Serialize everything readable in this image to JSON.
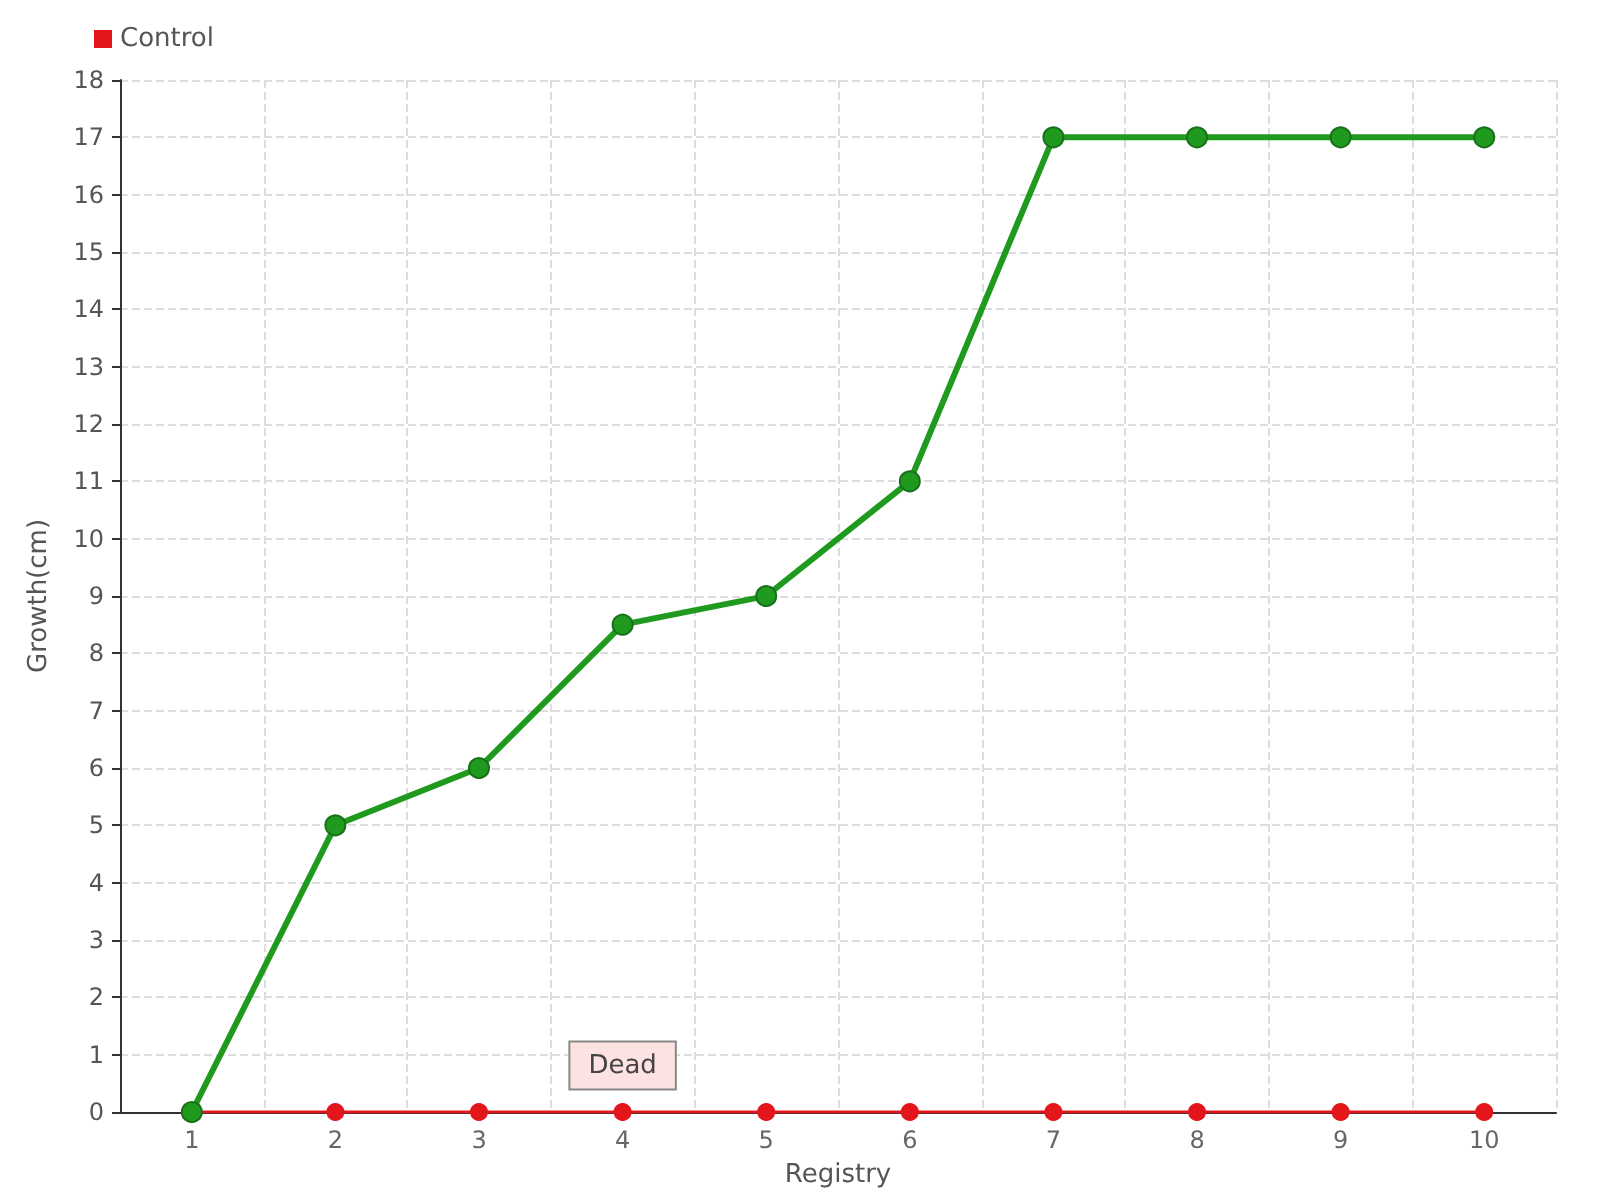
{
  "chart_data": {
    "type": "line",
    "xlabel": "Registry",
    "ylabel": "Growth(cm)",
    "categories": [
      "1",
      "2",
      "3",
      "4",
      "5",
      "6",
      "7",
      "8",
      "9",
      "10"
    ],
    "series": [
      {
        "color": "#1f9a1f",
        "values": [
          0,
          5,
          6,
          8.5,
          9,
          11,
          17,
          17,
          17,
          17
        ]
      },
      {
        "name": "Control",
        "color": "#e3161c",
        "values": [
          0,
          0,
          0,
          0,
          0,
          0,
          0,
          0,
          0,
          0
        ]
      }
    ],
    "ylim": [
      0,
      18
    ],
    "yticks": [
      0,
      1,
      2,
      3,
      4,
      5,
      6,
      7,
      8,
      9,
      10,
      11,
      12,
      13,
      14,
      15,
      16,
      17,
      18
    ],
    "annotations": [
      {
        "text": "Dead",
        "x": "4",
        "y": 0
      }
    ],
    "grid": true,
    "legend": "top left",
    "marker": "circle",
    "line_style": "solid"
  }
}
